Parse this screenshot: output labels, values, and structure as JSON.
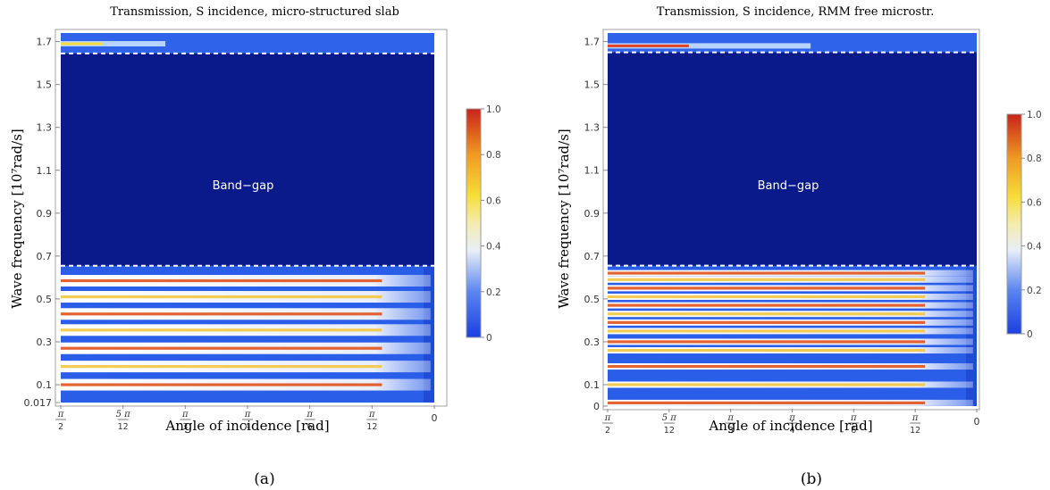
{
  "chart_data": [
    {
      "type": "heatmap",
      "caption": "(a)",
      "title": "Transmission, S incidence, micro-structured slab",
      "xlabel": "Angle of incidence [rad]",
      "ylabel": "Wave frequency [10⁷rad/s]",
      "x_ticks": [
        {
          "num": "π",
          "den": "2",
          "value": 1.5708
        },
        {
          "num": "5 π",
          "den": "12",
          "value": 1.309
        },
        {
          "num": "π",
          "den": "3",
          "value": 1.0472
        },
        {
          "num": "π",
          "den": "4",
          "value": 0.7854
        },
        {
          "num": "π",
          "den": "6",
          "value": 0.5236
        },
        {
          "num": "π",
          "den": "12",
          "value": 0.2618
        },
        {
          "num": "0",
          "den": "",
          "value": 0
        }
      ],
      "xlim": [
        1.5708,
        0
      ],
      "y_ticks": [
        "0.017",
        "0.1",
        "0.3",
        "0.5",
        "0.7",
        "0.9",
        "1.1",
        "1.3",
        "1.5",
        "1.7"
      ],
      "ylim": [
        0.017,
        1.74
      ],
      "band_gap": {
        "label": "Band−gap",
        "lower": 0.655,
        "upper": 1.645
      },
      "transmission_peaks_frequency": [
        0.1,
        0.185,
        0.27,
        0.355,
        0.43,
        0.51,
        0.585,
        1.69
      ],
      "colorbar": {
        "ticks": [
          "0",
          "0.2",
          "0.4",
          "0.6",
          "0.8",
          "1.0"
        ],
        "range": [
          0,
          1
        ]
      }
    },
    {
      "type": "heatmap",
      "caption": "(b)",
      "title": "Transmission, S incidence, RMM free microstr.",
      "xlabel": "Angle of incidence [rad]",
      "ylabel": "Wave frequency [10⁷rad/s]",
      "x_ticks": [
        {
          "num": "π",
          "den": "2",
          "value": 1.5708
        },
        {
          "num": "5 π",
          "den": "12",
          "value": 1.309
        },
        {
          "num": "π",
          "den": "3",
          "value": 1.0472
        },
        {
          "num": "π",
          "den": "4",
          "value": 0.7854
        },
        {
          "num": "π",
          "den": "6",
          "value": 0.5236
        },
        {
          "num": "π",
          "den": "12",
          "value": 0.2618
        },
        {
          "num": "0",
          "den": "",
          "value": 0
        }
      ],
      "xlim": [
        1.5708,
        0
      ],
      "y_ticks": [
        "0",
        "0.1",
        "0.3",
        "0.5",
        "0.7",
        "0.9",
        "1.1",
        "1.3",
        "1.5",
        "1.7"
      ],
      "ylim": [
        0,
        1.74
      ],
      "band_gap": {
        "label": "Band−gap",
        "lower": 0.655,
        "upper": 1.65
      },
      "transmission_peaks_frequency": [
        0.015,
        0.1,
        0.185,
        0.26,
        0.3,
        0.35,
        0.39,
        0.43,
        0.47,
        0.51,
        0.55,
        0.59,
        0.62,
        1.68
      ],
      "colorbar": {
        "ticks": [
          "0",
          "0.2",
          "0.4",
          "0.6",
          "0.8",
          "1.0"
        ],
        "range": [
          0,
          1
        ]
      }
    }
  ]
}
